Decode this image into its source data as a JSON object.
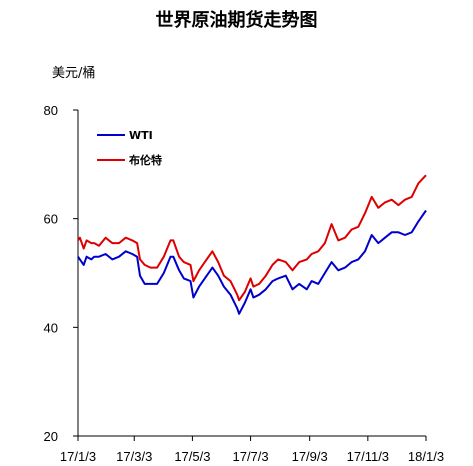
{
  "chart_data": {
    "type": "line",
    "title": "世界原油期货走势图",
    "ylabel": "美元/桶",
    "xlabel": "",
    "ylim": [
      20,
      80
    ],
    "yticks": [
      20,
      40,
      60,
      80
    ],
    "x_tick_labels": [
      "17/1/3",
      "17/3/3",
      "17/5/3",
      "17/7/3",
      "17/9/3",
      "17/11/3",
      "18/1/3"
    ],
    "x_tick_dates": [
      "2017-01-03",
      "2017-03-03",
      "2017-05-03",
      "2017-07-03",
      "2017-09-03",
      "2017-11-03",
      "2018-01-03"
    ],
    "grid": false,
    "legend_position": "top-left",
    "series": [
      {
        "name": "WTI",
        "color": "#0000cc",
        "points": [
          [
            "2017-01-03",
            53.0
          ],
          [
            "2017-01-05",
            52.5
          ],
          [
            "2017-01-09",
            51.5
          ],
          [
            "2017-01-12",
            53.0
          ],
          [
            "2017-01-17",
            52.5
          ],
          [
            "2017-01-20",
            53.0
          ],
          [
            "2017-01-25",
            53.0
          ],
          [
            "2017-02-01",
            53.5
          ],
          [
            "2017-02-08",
            52.5
          ],
          [
            "2017-02-15",
            53.0
          ],
          [
            "2017-02-22",
            54.0
          ],
          [
            "2017-03-01",
            53.5
          ],
          [
            "2017-03-06",
            53.0
          ],
          [
            "2017-03-09",
            49.5
          ],
          [
            "2017-03-14",
            48.0
          ],
          [
            "2017-03-20",
            48.0
          ],
          [
            "2017-03-27",
            48.0
          ],
          [
            "2017-04-03",
            50.0
          ],
          [
            "2017-04-10",
            53.0
          ],
          [
            "2017-04-13",
            53.0
          ],
          [
            "2017-04-19",
            50.5
          ],
          [
            "2017-04-24",
            49.0
          ],
          [
            "2017-05-01",
            48.5
          ],
          [
            "2017-05-04",
            45.5
          ],
          [
            "2017-05-10",
            47.5
          ],
          [
            "2017-05-16",
            49.0
          ],
          [
            "2017-05-24",
            51.0
          ],
          [
            "2017-05-30",
            49.5
          ],
          [
            "2017-06-05",
            47.5
          ],
          [
            "2017-06-12",
            46.0
          ],
          [
            "2017-06-19",
            43.5
          ],
          [
            "2017-06-21",
            42.5
          ],
          [
            "2017-06-27",
            44.5
          ],
          [
            "2017-07-03",
            47.0
          ],
          [
            "2017-07-06",
            45.5
          ],
          [
            "2017-07-12",
            46.0
          ],
          [
            "2017-07-19",
            47.0
          ],
          [
            "2017-07-26",
            48.5
          ],
          [
            "2017-08-01",
            49.0
          ],
          [
            "2017-08-09",
            49.5
          ],
          [
            "2017-08-16",
            47.0
          ],
          [
            "2017-08-23",
            48.0
          ],
          [
            "2017-08-31",
            47.0
          ],
          [
            "2017-09-05",
            48.5
          ],
          [
            "2017-09-12",
            48.0
          ],
          [
            "2017-09-19",
            50.0
          ],
          [
            "2017-09-26",
            52.0
          ],
          [
            "2017-10-03",
            50.5
          ],
          [
            "2017-10-10",
            51.0
          ],
          [
            "2017-10-17",
            52.0
          ],
          [
            "2017-10-24",
            52.5
          ],
          [
            "2017-10-31",
            54.0
          ],
          [
            "2017-11-07",
            57.0
          ],
          [
            "2017-11-14",
            55.5
          ],
          [
            "2017-11-21",
            56.5
          ],
          [
            "2017-11-28",
            57.5
          ],
          [
            "2017-12-05",
            57.5
          ],
          [
            "2017-12-12",
            57.0
          ],
          [
            "2017-12-19",
            57.5
          ],
          [
            "2017-12-26",
            59.5
          ],
          [
            "2018-01-03",
            61.5
          ]
        ]
      },
      {
        "name": "布伦特",
        "color": "#dd0000",
        "points": [
          [
            "2017-01-03",
            56.0
          ],
          [
            "2017-01-05",
            56.5
          ],
          [
            "2017-01-09",
            54.5
          ],
          [
            "2017-01-12",
            56.0
          ],
          [
            "2017-01-17",
            55.5
          ],
          [
            "2017-01-20",
            55.5
          ],
          [
            "2017-01-25",
            55.0
          ],
          [
            "2017-02-01",
            56.5
          ],
          [
            "2017-02-08",
            55.5
          ],
          [
            "2017-02-15",
            55.5
          ],
          [
            "2017-02-22",
            56.5
          ],
          [
            "2017-03-01",
            56.0
          ],
          [
            "2017-03-06",
            55.5
          ],
          [
            "2017-03-09",
            52.5
          ],
          [
            "2017-03-14",
            51.5
          ],
          [
            "2017-03-20",
            51.0
          ],
          [
            "2017-03-27",
            51.0
          ],
          [
            "2017-04-03",
            53.0
          ],
          [
            "2017-04-10",
            56.0
          ],
          [
            "2017-04-13",
            56.0
          ],
          [
            "2017-04-19",
            53.0
          ],
          [
            "2017-04-24",
            52.0
          ],
          [
            "2017-05-01",
            51.5
          ],
          [
            "2017-05-04",
            48.5
          ],
          [
            "2017-05-10",
            50.5
          ],
          [
            "2017-05-16",
            52.0
          ],
          [
            "2017-05-24",
            54.0
          ],
          [
            "2017-05-30",
            52.0
          ],
          [
            "2017-06-05",
            49.5
          ],
          [
            "2017-06-12",
            48.5
          ],
          [
            "2017-06-19",
            46.0
          ],
          [
            "2017-06-21",
            45.0
          ],
          [
            "2017-06-27",
            46.5
          ],
          [
            "2017-07-03",
            49.0
          ],
          [
            "2017-07-06",
            47.5
          ],
          [
            "2017-07-12",
            48.0
          ],
          [
            "2017-07-19",
            49.5
          ],
          [
            "2017-07-26",
            51.5
          ],
          [
            "2017-08-01",
            52.5
          ],
          [
            "2017-08-09",
            52.0
          ],
          [
            "2017-08-16",
            50.5
          ],
          [
            "2017-08-23",
            52.0
          ],
          [
            "2017-08-31",
            52.5
          ],
          [
            "2017-09-05",
            53.5
          ],
          [
            "2017-09-12",
            54.0
          ],
          [
            "2017-09-19",
            55.5
          ],
          [
            "2017-09-26",
            59.0
          ],
          [
            "2017-10-03",
            56.0
          ],
          [
            "2017-10-10",
            56.5
          ],
          [
            "2017-10-17",
            58.0
          ],
          [
            "2017-10-24",
            58.5
          ],
          [
            "2017-10-31",
            61.0
          ],
          [
            "2017-11-07",
            64.0
          ],
          [
            "2017-11-14",
            62.0
          ],
          [
            "2017-11-21",
            63.0
          ],
          [
            "2017-11-28",
            63.5
          ],
          [
            "2017-12-05",
            62.5
          ],
          [
            "2017-12-12",
            63.5
          ],
          [
            "2017-12-19",
            64.0
          ],
          [
            "2017-12-26",
            66.5
          ],
          [
            "2018-01-03",
            68.0
          ]
        ]
      }
    ]
  }
}
